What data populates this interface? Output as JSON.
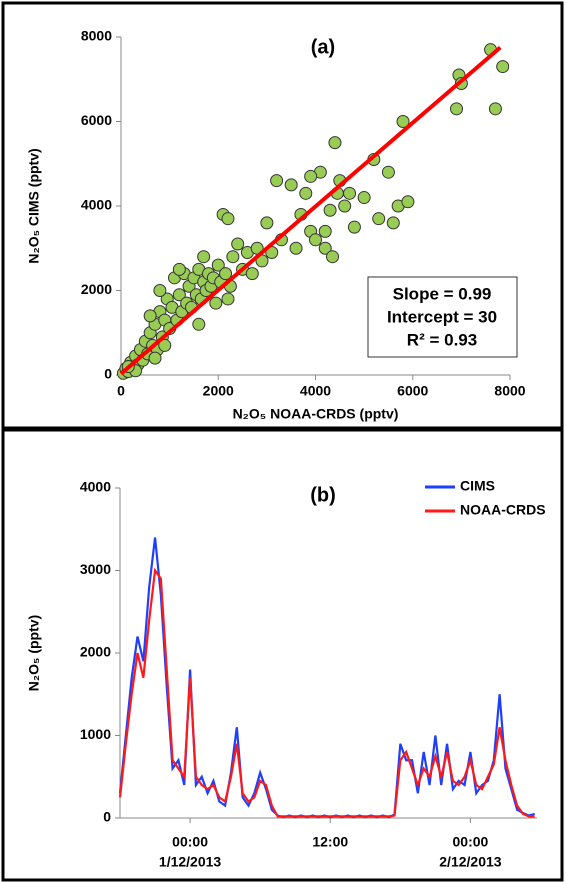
{
  "chart_data": [
    {
      "type": "scatter",
      "title": "(a)",
      "xlabel": "N₂O₅ NOAA-CRDS (pptv)",
      "ylabel": "N₂O₅ CIMS (pptv)",
      "xlim": [
        0,
        8000
      ],
      "ylim": [
        0,
        8000
      ],
      "xticks": [
        0,
        2000,
        4000,
        6000,
        8000
      ],
      "yticks": [
        0,
        2000,
        4000,
        6000,
        8000
      ],
      "color": "#99cc55",
      "x": [
        50,
        100,
        150,
        200,
        250,
        300,
        350,
        400,
        450,
        500,
        550,
        600,
        650,
        700,
        750,
        800,
        850,
        900,
        950,
        1000,
        1050,
        1100,
        1150,
        1200,
        1250,
        1300,
        1350,
        1400,
        1450,
        1500,
        1550,
        1600,
        1650,
        1700,
        1750,
        1800,
        1850,
        1900,
        1950,
        2000,
        2050,
        2100,
        2150,
        2200,
        2250,
        2300,
        2400,
        2500,
        2600,
        2700,
        2800,
        2900,
        3000,
        3100,
        3200,
        3300,
        3500,
        3600,
        3700,
        3800,
        3900,
        4000,
        4100,
        4200,
        4300,
        4400,
        4450,
        4500,
        4600,
        4700,
        4800,
        5000,
        5200,
        5300,
        5500,
        5600,
        5700,
        5800,
        5900,
        6950,
        7000,
        6900,
        7600,
        7700,
        7850,
        4200,
        4350,
        3900,
        2200,
        1700,
        1200,
        800,
        600,
        300,
        150,
        700,
        900,
        1600
      ],
      "y": [
        40,
        150,
        80,
        300,
        200,
        450,
        250,
        600,
        350,
        800,
        500,
        1000,
        700,
        1200,
        600,
        1500,
        900,
        1300,
        1800,
        1100,
        1600,
        2300,
        1300,
        1900,
        1500,
        2400,
        1700,
        2100,
        1600,
        2300,
        1900,
        2500,
        1800,
        2200,
        2000,
        2400,
        2100,
        2300,
        1700,
        2600,
        2200,
        3800,
        2400,
        3700,
        2100,
        2800,
        3100,
        2500,
        2900,
        2400,
        3000,
        2700,
        3600,
        2900,
        4600,
        3200,
        4500,
        3000,
        3800,
        4300,
        3400,
        3200,
        4800,
        3000,
        3900,
        5500,
        4300,
        4600,
        4000,
        4300,
        3500,
        4200,
        5100,
        3700,
        4800,
        3600,
        4000,
        6000,
        4100,
        7100,
        6900,
        6300,
        7700,
        6300,
        7300,
        3400,
        2800,
        4700,
        1800,
        2800,
        2500,
        2000,
        1400,
        100,
        200,
        400,
        700,
        1200
      ],
      "fit_line": {
        "color": "#ff0000",
        "x": [
          0,
          7800
        ],
        "y": [
          30,
          7752
        ]
      },
      "annotations": [
        "Slope = 0.99",
        "Intercept = 30",
        "R² = 0.93"
      ]
    },
    {
      "type": "line",
      "title": "(b)",
      "ylabel": "N₂O₅ (pptv)",
      "xlim": [
        -6,
        29.7
      ],
      "ylim": [
        0,
        4000
      ],
      "yticks": [
        0,
        1000,
        2000,
        3000,
        4000
      ],
      "xticks": [
        {
          "value": 0,
          "label": "00:00"
        },
        {
          "value": 12,
          "label": "12:00"
        },
        {
          "value": 24,
          "label": "00:00"
        }
      ],
      "xticks_dates": [
        {
          "value": 0,
          "label": "1/12/2013"
        },
        {
          "value": 24,
          "label": "2/12/2013"
        }
      ],
      "x": [
        -6,
        -5.5,
        -5,
        -4.5,
        -4,
        -3.5,
        -3,
        -2.5,
        -2,
        -1.5,
        -1,
        -0.5,
        0,
        0.5,
        1,
        1.5,
        2,
        2.5,
        3,
        3.5,
        4,
        4.5,
        5,
        5.5,
        6,
        6.5,
        7,
        7.5,
        8,
        8.5,
        9,
        9.5,
        10,
        10.5,
        11,
        11.5,
        12,
        12.5,
        13,
        13.5,
        14,
        14.5,
        15,
        15.5,
        16,
        16.5,
        17,
        17.5,
        18,
        18.5,
        19,
        19.5,
        20,
        20.5,
        21,
        21.5,
        22,
        22.5,
        23,
        23.5,
        24,
        24.5,
        25,
        25.5,
        26,
        26.5,
        27,
        27.5,
        28,
        28.5,
        29,
        29.5
      ],
      "series": [
        {
          "name": "CIMS",
          "color": "#1f3fff",
          "values": [
            300,
            1000,
            1700,
            2200,
            1900,
            2800,
            3400,
            2700,
            1600,
            600,
            700,
            400,
            1800,
            400,
            500,
            300,
            450,
            200,
            150,
            550,
            1100,
            250,
            150,
            300,
            550,
            350,
            100,
            30,
            10,
            30,
            10,
            30,
            10,
            30,
            10,
            30,
            10,
            30,
            10,
            30,
            10,
            30,
            10,
            30,
            10,
            30,
            10,
            40,
            900,
            700,
            700,
            300,
            800,
            400,
            1000,
            400,
            900,
            350,
            450,
            400,
            800,
            300,
            400,
            450,
            700,
            1500,
            600,
            350,
            100,
            60,
            30,
            50
          ]
        },
        {
          "name": "NOAA-CRDS",
          "color": "#ff1a1a",
          "values": [
            250,
            900,
            1500,
            2000,
            1700,
            2400,
            3000,
            2900,
            1800,
            700,
            600,
            500,
            1700,
            500,
            400,
            350,
            400,
            250,
            200,
            500,
            900,
            300,
            200,
            250,
            450,
            400,
            150,
            20,
            20,
            20,
            20,
            20,
            20,
            20,
            20,
            20,
            20,
            20,
            20,
            20,
            20,
            20,
            20,
            20,
            20,
            20,
            20,
            30,
            700,
            800,
            600,
            400,
            600,
            500,
            750,
            500,
            800,
            450,
            400,
            500,
            700,
            400,
            350,
            500,
            650,
            1100,
            700,
            400,
            150,
            50,
            20,
            20
          ]
        }
      ]
    }
  ]
}
